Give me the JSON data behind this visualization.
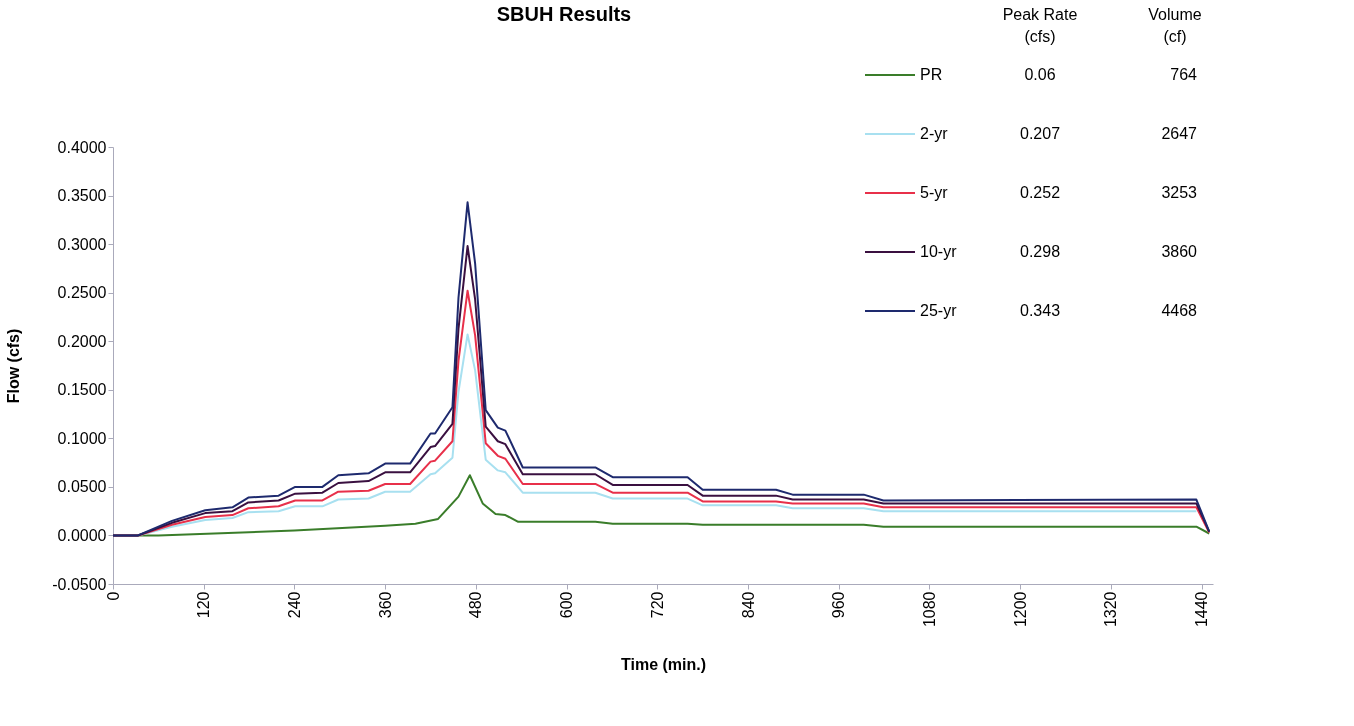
{
  "chart_data": {
    "type": "line",
    "title": "SBUH Results",
    "xlabel": "Time (min.)",
    "ylabel": "Flow (cfs)",
    "x": [
      0,
      33,
      78,
      122,
      158,
      179,
      219,
      241,
      277,
      298,
      338,
      360,
      393,
      420,
      426,
      449,
      457,
      469,
      479,
      493,
      509,
      519,
      542,
      638,
      661,
      760,
      780,
      877,
      899,
      993,
      1019,
      1433,
      1450
    ],
    "series": [
      {
        "name": "PR",
        "color": "#3a7d2a",
        "x": [
          0,
          60,
          240,
          360,
          400,
          430,
          457,
          472,
          489,
          506,
          519,
          536,
          638,
          661,
          760,
          780,
          993,
          1019,
          1433,
          1450
        ],
        "values": [
          0,
          0,
          0.005,
          0.01,
          0.012,
          0.017,
          0.04,
          0.062,
          0.033,
          0.022,
          0.021,
          0.014,
          0.014,
          0.012,
          0.012,
          0.011,
          0.011,
          0.009,
          0.009,
          0.002
        ]
      },
      {
        "name": "2-yr",
        "color": "#a8e0f0",
        "values": [
          0,
          0,
          0.009,
          0.016,
          0.018,
          0.024,
          0.025,
          0.03,
          0.03,
          0.037,
          0.038,
          0.045,
          0.045,
          0.063,
          0.064,
          0.08,
          0.148,
          0.207,
          0.17,
          0.078,
          0.067,
          0.065,
          0.044,
          0.044,
          0.038,
          0.038,
          0.031,
          0.031,
          0.028,
          0.028,
          0.025,
          0.025,
          null
        ]
      },
      {
        "name": "5-yr",
        "color": "#e8304a",
        "values": [
          0,
          0,
          0.011,
          0.019,
          0.021,
          0.028,
          0.03,
          0.036,
          0.036,
          0.045,
          0.046,
          0.053,
          0.053,
          0.076,
          0.077,
          0.097,
          0.18,
          0.252,
          0.206,
          0.095,
          0.082,
          0.079,
          0.053,
          0.053,
          0.044,
          0.044,
          0.035,
          0.035,
          0.033,
          0.033,
          0.029,
          0.029,
          0.003
        ]
      },
      {
        "name": "10-yr",
        "color": "#3a1040",
        "values": [
          0,
          0,
          0.013,
          0.023,
          0.025,
          0.034,
          0.036,
          0.043,
          0.044,
          0.054,
          0.056,
          0.065,
          0.065,
          0.091,
          0.092,
          0.115,
          0.213,
          0.298,
          0.243,
          0.112,
          0.097,
          0.094,
          0.063,
          0.063,
          0.052,
          0.052,
          0.041,
          0.041,
          0.037,
          0.037,
          0.033,
          0.033,
          0.004
        ]
      },
      {
        "name": "25-yr",
        "color": "#1e2a6e",
        "values": [
          0,
          0,
          0.015,
          0.026,
          0.029,
          0.039,
          0.041,
          0.05,
          0.05,
          0.062,
          0.064,
          0.074,
          0.074,
          0.105,
          0.105,
          0.132,
          0.245,
          0.343,
          0.28,
          0.129,
          0.111,
          0.108,
          0.07,
          0.07,
          0.06,
          0.06,
          0.047,
          0.047,
          0.042,
          0.042,
          0.036,
          0.037,
          0.004
        ]
      }
    ],
    "xlim": [
      0,
      1455
    ],
    "xticks": [
      0,
      120,
      240,
      360,
      480,
      600,
      720,
      840,
      960,
      1080,
      1200,
      1320,
      1440
    ],
    "ylim": [
      -0.05,
      0.4
    ],
    "yticks": [
      {
        "value": -0.05,
        "label": "-0.0500"
      },
      {
        "value": 0,
        "label": "0.0000"
      },
      {
        "value": 0.05,
        "label": "0.0500"
      },
      {
        "value": 0.1,
        "label": "0.1000"
      },
      {
        "value": 0.15,
        "label": "0.1500"
      },
      {
        "value": 0.2,
        "label": "0.2000"
      },
      {
        "value": 0.25,
        "label": "0.2500"
      },
      {
        "value": 0.3,
        "label": "0.3000"
      },
      {
        "value": 0.35,
        "label": "0.3500"
      },
      {
        "value": 0.4,
        "label": "0.4000"
      }
    ],
    "annotations": [
      "Peak Rate\n(cfs)",
      "Volume\n(cf)",
      "0.06",
      "764",
      "0.207",
      "2647",
      "0.252",
      "3253",
      "0.298",
      "3860",
      "0.343",
      "4468"
    ],
    "legend": "top right",
    "grid": false,
    "marker": "none",
    "line_style": "solid"
  }
}
